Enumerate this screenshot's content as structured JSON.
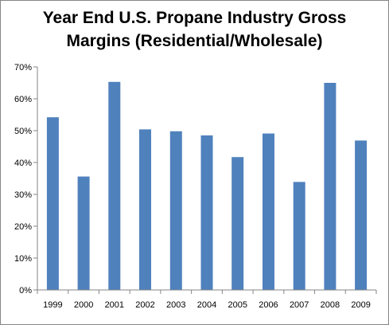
{
  "chart_data": {
    "type": "bar",
    "title_lines": [
      "Year End U.S. Propane Industry Gross",
      "Margins (Residential/Wholesale)"
    ],
    "categories": [
      "1999",
      "2000",
      "2001",
      "2002",
      "2003",
      "2004",
      "2005",
      "2006",
      "2007",
      "2008",
      "2009"
    ],
    "values": [
      54.2,
      35.6,
      65.3,
      50.4,
      49.8,
      48.5,
      41.7,
      49.1,
      33.9,
      65.0,
      46.9
    ],
    "ylim": [
      0,
      70
    ],
    "yticks": [
      "0%",
      "10%",
      "20%",
      "30%",
      "40%",
      "50%",
      "60%",
      "70%"
    ],
    "grid": false,
    "legend": "none",
    "colors": {
      "bar": "#4F81BD",
      "axis": "#868686"
    }
  }
}
